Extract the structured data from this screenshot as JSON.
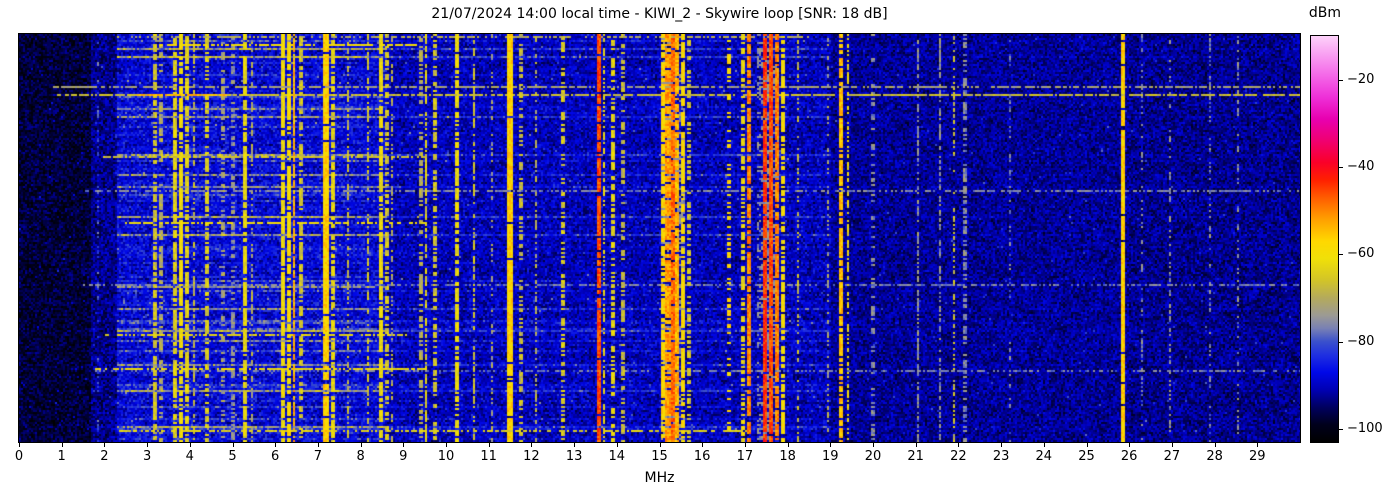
{
  "title": "21/07/2024 14:00 local time - KIWI_2 - Skywire loop [SNR: 18 dB]",
  "xlabel": "MHz",
  "colorbar": {
    "label": "dBm",
    "ticks": [
      -20,
      -40,
      -60,
      -80,
      -100
    ],
    "vmin": -103,
    "vmax": -10
  },
  "chart_data": {
    "type": "heatmap",
    "title": "21/07/2024 14:00 local time - KIWI_2 - Skywire loop [SNR: 18 dB]",
    "xlabel": "MHz",
    "x_range": [
      0,
      30
    ],
    "x_ticks": [
      0,
      1,
      2,
      3,
      4,
      5,
      6,
      7,
      8,
      9,
      10,
      11,
      12,
      13,
      14,
      15,
      16,
      17,
      18,
      19,
      20,
      21,
      22,
      23,
      24,
      25,
      26,
      27,
      28,
      29
    ],
    "y_axis": "time (waterfall, no tick labels shown)",
    "value_unit": "dBm",
    "value_range": [
      -103,
      -10
    ],
    "colorbar_ticks": [
      -20,
      -40,
      -60,
      -80,
      -100
    ],
    "legend_position": "right colorbar",
    "grid": false,
    "colormap_stops": [
      [
        -103,
        "#000000"
      ],
      [
        -99,
        "#00001c"
      ],
      [
        -95,
        "#000060"
      ],
      [
        -91,
        "#0000b4"
      ],
      [
        -87,
        "#0008e8"
      ],
      [
        -83,
        "#2030e0"
      ],
      [
        -80,
        "#3a50cc"
      ],
      [
        -77,
        "#7880b4"
      ],
      [
        -74,
        "#9c9a94"
      ],
      [
        -70,
        "#b4aa5c"
      ],
      [
        -66,
        "#d2c428"
      ],
      [
        -61,
        "#f0e008"
      ],
      [
        -57,
        "#ffd800"
      ],
      [
        -52,
        "#ffa000"
      ],
      [
        -47,
        "#ff5c00"
      ],
      [
        -43,
        "#ff2000"
      ],
      [
        -39,
        "#fa0028"
      ],
      [
        -34,
        "#f00070"
      ],
      [
        -29,
        "#e800b0"
      ],
      [
        -24,
        "#ee30d8"
      ],
      [
        -19,
        "#f468e8"
      ],
      [
        -14,
        "#f9a2f2"
      ],
      [
        -10,
        "#fdd2fa"
      ]
    ],
    "noise_regions": [
      {
        "f0": 0.0,
        "f1": 1.7,
        "base": -99,
        "spread": 8
      },
      {
        "f0": 1.7,
        "f1": 2.3,
        "base": -95,
        "spread": 9
      },
      {
        "f0": 2.3,
        "f1": 8.6,
        "base": -92,
        "spread": 10
      },
      {
        "f0": 8.6,
        "f1": 19.0,
        "base": -93,
        "spread": 9
      },
      {
        "f0": 19.0,
        "f1": 26.0,
        "base": -94,
        "spread": 8
      },
      {
        "f0": 26.0,
        "f1": 30.0,
        "base": -94.5,
        "spread": 8
      }
    ],
    "streak_rows": {
      "region": [
        2.3,
        8.6
      ],
      "prob": 0.3,
      "max_boost": 21,
      "mid_region": [
        8.6,
        19.0
      ],
      "mid_factor": 0.45
    },
    "h_streaks": [
      {
        "row": 2,
        "f0": 2.3,
        "f1": 18.5,
        "level": -70,
        "duty": 0.55
      },
      {
        "row": 10,
        "f0": 3.3,
        "f1": 9.3,
        "level": -60,
        "duty": 0.7
      },
      {
        "row": 53,
        "f0": 0.8,
        "f1": 30.0,
        "level": -72,
        "duty": 0.75
      },
      {
        "row": 61,
        "f0": 0.9,
        "f1": 30.0,
        "level": -67,
        "duty": 0.8
      },
      {
        "row": 61,
        "f0": 2.8,
        "f1": 4.8,
        "level": -54,
        "duty": 0.85
      },
      {
        "row": 122,
        "f0": 2.0,
        "f1": 9.5,
        "level": -66,
        "duty": 0.6
      },
      {
        "row": 156,
        "f0": 1.5,
        "f1": 30.0,
        "level": -76,
        "duty": 0.6
      },
      {
        "row": 188,
        "f0": 2.5,
        "f1": 9.5,
        "level": -60,
        "duty": 0.65
      },
      {
        "row": 250,
        "f0": 1.5,
        "f1": 30.0,
        "level": -77,
        "duty": 0.55
      },
      {
        "row": 300,
        "f0": 2.0,
        "f1": 9.0,
        "level": -63,
        "duty": 0.6
      },
      {
        "row": 334,
        "f0": 1.8,
        "f1": 9.5,
        "level": -62,
        "duty": 0.7
      },
      {
        "row": 336,
        "f0": 1.8,
        "f1": 30.0,
        "level": -77,
        "duty": 0.5
      },
      {
        "row": 396,
        "f0": 2.2,
        "f1": 17.0,
        "level": -64,
        "duty": 0.6
      }
    ],
    "bands": [
      {
        "f": 1.85,
        "w": 0.03,
        "level": -80,
        "duty": 0.3
      },
      {
        "f": 3.2,
        "w": 0.04,
        "level": -66,
        "duty": 0.7
      },
      {
        "f": 3.33,
        "w": 0.04,
        "level": -70,
        "duty": 0.5
      },
      {
        "f": 3.65,
        "w": 0.05,
        "level": -64,
        "duty": 0.75
      },
      {
        "f": 3.8,
        "w": 0.05,
        "level": -61,
        "duty": 0.8
      },
      {
        "f": 3.95,
        "w": 0.05,
        "level": -64,
        "duty": 0.7
      },
      {
        "f": 4.1,
        "w": 0.04,
        "level": -68,
        "duty": 0.5
      },
      {
        "f": 4.42,
        "w": 0.04,
        "level": -65,
        "duty": 0.6
      },
      {
        "f": 4.77,
        "w": 0.03,
        "level": -72,
        "duty": 0.4
      },
      {
        "f": 5.0,
        "w": 0.03,
        "level": -74,
        "duty": 0.4
      },
      {
        "f": 5.3,
        "w": 0.04,
        "level": -63,
        "duty": 0.8
      },
      {
        "f": 5.45,
        "w": 0.03,
        "level": -70,
        "duty": 0.5
      },
      {
        "f": 6.18,
        "w": 0.05,
        "level": -61,
        "duty": 0.85
      },
      {
        "f": 6.31,
        "w": 0.04,
        "level": -59,
        "duty": 0.8
      },
      {
        "f": 6.44,
        "w": 0.04,
        "level": -54,
        "duty": 0.8
      },
      {
        "f": 6.6,
        "w": 0.04,
        "level": -66,
        "duty": 0.6
      },
      {
        "f": 7.18,
        "w": 0.1,
        "level": -57,
        "duty": 0.95
      },
      {
        "f": 7.36,
        "w": 0.04,
        "level": -63,
        "duty": 0.7
      },
      {
        "f": 7.7,
        "w": 0.03,
        "level": -68,
        "duty": 0.5
      },
      {
        "f": 8.17,
        "w": 0.03,
        "level": -66,
        "duty": 0.55
      },
      {
        "f": 8.46,
        "w": 0.04,
        "level": -62,
        "duty": 0.8
      },
      {
        "f": 8.62,
        "w": 0.03,
        "level": -66,
        "duty": 0.55
      },
      {
        "f": 8.74,
        "w": 0.03,
        "level": -70,
        "duty": 0.45
      },
      {
        "f": 9.4,
        "w": 0.03,
        "level": -70,
        "duty": 0.45
      },
      {
        "f": 9.54,
        "w": 0.03,
        "level": -64,
        "duty": 0.65
      },
      {
        "f": 9.74,
        "w": 0.03,
        "level": -66,
        "duty": 0.55
      },
      {
        "f": 10.25,
        "w": 0.04,
        "level": -62,
        "duty": 0.75
      },
      {
        "f": 10.65,
        "w": 0.03,
        "level": -66,
        "duty": 0.6
      },
      {
        "f": 11.08,
        "w": 0.03,
        "level": -72,
        "duty": 0.4
      },
      {
        "f": 11.49,
        "w": 0.09,
        "level": -57,
        "duty": 0.95
      },
      {
        "f": 11.75,
        "w": 0.03,
        "level": -68,
        "duty": 0.5
      },
      {
        "f": 12.1,
        "w": 0.03,
        "level": -70,
        "duty": 0.45
      },
      {
        "f": 12.75,
        "w": 0.03,
        "level": -65,
        "duty": 0.5
      },
      {
        "f": 13.57,
        "w": 0.04,
        "level": -46,
        "duty": 0.9
      },
      {
        "f": 13.7,
        "w": 0.03,
        "level": -62,
        "duty": 0.6
      },
      {
        "f": 13.9,
        "w": 0.03,
        "level": -63,
        "duty": 0.6
      },
      {
        "f": 14.15,
        "w": 0.03,
        "level": -68,
        "duty": 0.5
      },
      {
        "f": 15.1,
        "w": 0.05,
        "level": -58,
        "duty": 0.8
      },
      {
        "f": 15.2,
        "w": 0.05,
        "level": -52,
        "duty": 0.85
      },
      {
        "f": 15.31,
        "w": 0.06,
        "level": -48,
        "duty": 0.9,
        "haze": 0.22
      },
      {
        "f": 15.43,
        "w": 0.05,
        "level": -54,
        "duty": 0.85
      },
      {
        "f": 15.55,
        "w": 0.05,
        "level": -59,
        "duty": 0.8
      },
      {
        "f": 15.7,
        "w": 0.03,
        "level": -66,
        "duty": 0.5
      },
      {
        "f": 16.62,
        "w": 0.03,
        "level": -58,
        "duty": 0.35
      },
      {
        "f": 16.95,
        "w": 0.03,
        "level": -62,
        "duty": 0.6
      },
      {
        "f": 17.1,
        "w": 0.04,
        "level": -50,
        "duty": 0.85
      },
      {
        "f": 17.48,
        "w": 0.05,
        "level": -44,
        "duty": 0.95,
        "haze": 0.12
      },
      {
        "f": 17.6,
        "w": 0.06,
        "level": -46,
        "duty": 0.95,
        "haze": 0.12
      },
      {
        "f": 17.73,
        "w": 0.05,
        "level": -50,
        "duty": 0.9
      },
      {
        "f": 17.9,
        "w": 0.03,
        "level": -60,
        "duty": 0.7
      },
      {
        "f": 18.25,
        "w": 0.03,
        "level": -68,
        "duty": 0.45
      },
      {
        "f": 18.95,
        "w": 0.02,
        "level": -72,
        "duty": 0.35
      },
      {
        "f": 19.25,
        "w": 0.04,
        "level": -55,
        "duty": 0.8
      },
      {
        "f": 19.42,
        "w": 0.03,
        "level": -62,
        "duty": 0.5
      },
      {
        "f": 20.0,
        "w": 0.02,
        "level": -75,
        "duty": 0.3
      },
      {
        "f": 21.05,
        "w": 0.03,
        "level": -74,
        "duty": 0.65
      },
      {
        "f": 21.57,
        "w": 0.03,
        "level": -75,
        "duty": 0.6
      },
      {
        "f": 21.9,
        "w": 0.03,
        "level": -67,
        "duty": 0.4
      },
      {
        "f": 22.15,
        "w": 0.03,
        "level": -75,
        "duty": 0.55
      },
      {
        "f": 23.2,
        "w": 0.02,
        "level": -77,
        "duty": 0.3
      },
      {
        "f": 25.86,
        "w": 0.04,
        "level": -57,
        "duty": 0.95
      },
      {
        "f": 26.3,
        "w": 0.02,
        "level": -76,
        "duty": 0.3
      },
      {
        "f": 26.95,
        "w": 0.02,
        "level": -75,
        "duty": 0.35
      },
      {
        "f": 27.9,
        "w": 0.02,
        "level": -76,
        "duty": 0.35
      },
      {
        "f": 28.55,
        "w": 0.02,
        "level": -75,
        "duty": 0.3
      }
    ]
  }
}
